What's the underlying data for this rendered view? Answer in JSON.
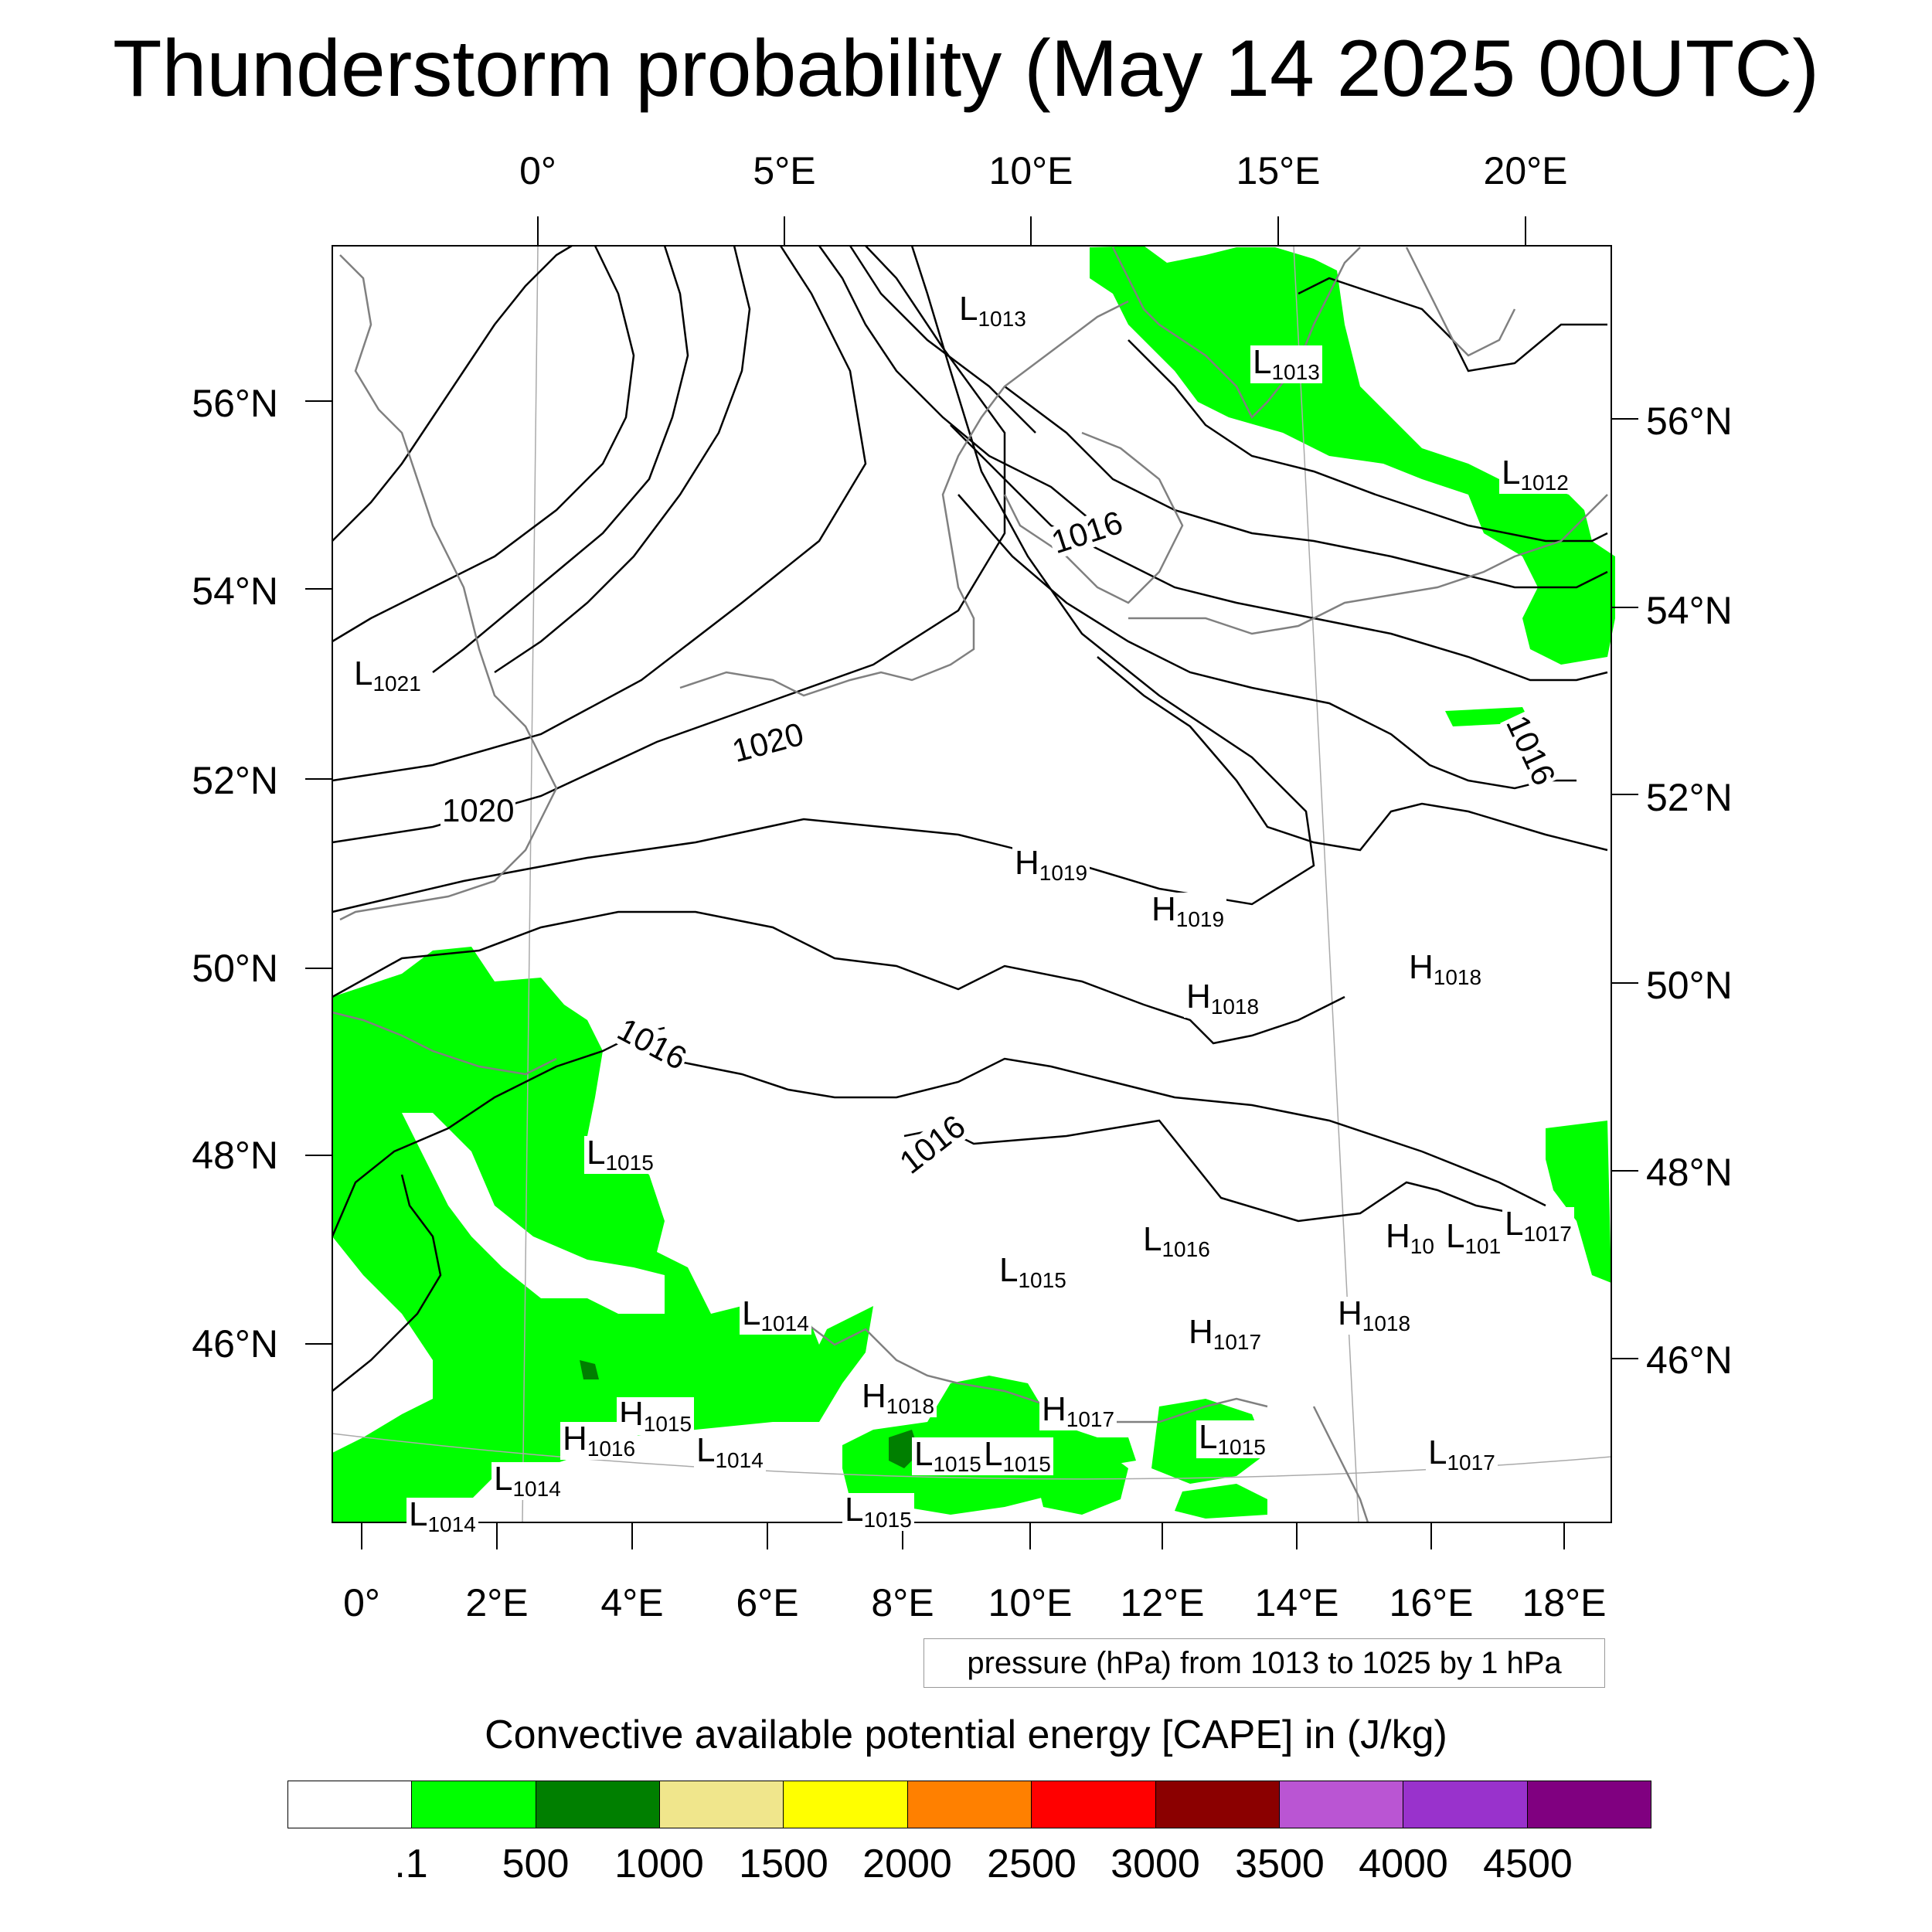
{
  "title": "Thunderstorm probability (May 14 2025 00UTC)",
  "top_ticks": [
    "0°",
    "5°E",
    "10°E",
    "15°E",
    "20°E"
  ],
  "bottom_ticks": [
    "0°",
    "2°E",
    "4°E",
    "6°E",
    "8°E",
    "10°E",
    "12°E",
    "14°E",
    "16°E",
    "18°E"
  ],
  "left_ticks": [
    "56°N",
    "54°N",
    "52°N",
    "50°N",
    "48°N",
    "46°N"
  ],
  "right_ticks": [
    "56°N",
    "54°N",
    "52°N",
    "50°N",
    "48°N",
    "46°N"
  ],
  "pressure_note": "pressure (hPa) from 1013 to 1025 by 1 hPa",
  "legend": {
    "title": "Convective available potential energy [CAPE] in (J/kg)",
    "colors": [
      "#ffffff",
      "#00ff00",
      "#007f00",
      "#f0e68c",
      "#ffff00",
      "#ff8000",
      "#ff0000",
      "#8b0000",
      "#ba55d3",
      "#9932cc",
      "#800080"
    ],
    "labels": [
      ".1",
      "500",
      "1000",
      "1500",
      "2000",
      "2500",
      "3000",
      "3500",
      "4000",
      "4500"
    ]
  },
  "pressure_centers": [
    {
      "kind": "L",
      "value": "1013"
    },
    {
      "kind": "L",
      "value": "1013"
    },
    {
      "kind": "L",
      "value": "1012"
    },
    {
      "kind": "L",
      "value": "1021"
    },
    {
      "kind": "H",
      "value": "1019"
    },
    {
      "kind": "H",
      "value": "1019"
    },
    {
      "kind": "H",
      "value": "1018"
    },
    {
      "kind": "H",
      "value": "1018"
    },
    {
      "kind": "L",
      "value": "1015"
    },
    {
      "kind": "L",
      "value": "1016"
    },
    {
      "kind": "L",
      "value": "1015"
    },
    {
      "kind": "H",
      "value": "10"
    },
    {
      "kind": "L",
      "value": "101"
    },
    {
      "kind": "L",
      "value": "1017"
    },
    {
      "kind": "L",
      "value": "1014"
    },
    {
      "kind": "H",
      "value": "1018"
    },
    {
      "kind": "H",
      "value": "1017"
    },
    {
      "kind": "H",
      "value": "1018"
    },
    {
      "kind": "H",
      "value": "1015"
    },
    {
      "kind": "H",
      "value": "1016"
    },
    {
      "kind": "L",
      "value": "1014"
    },
    {
      "kind": "L",
      "value": "1014"
    },
    {
      "kind": "L",
      "value": "1014"
    },
    {
      "kind": "H",
      "value": "1017"
    },
    {
      "kind": "L",
      "value": "1015"
    },
    {
      "kind": "L",
      "value": "1015"
    },
    {
      "kind": "L",
      "value": "1015"
    },
    {
      "kind": "L",
      "value": "1017"
    },
    {
      "kind": "L",
      "value": "1015"
    }
  ],
  "isobar_labels": [
    "1016",
    "1020",
    "1020",
    "1016",
    "1016",
    "1016"
  ]
}
